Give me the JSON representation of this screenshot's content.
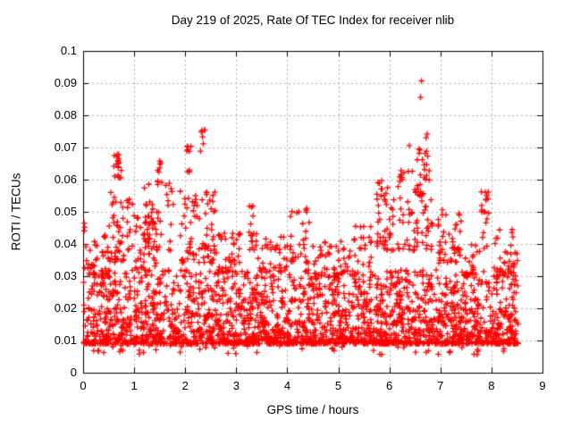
{
  "window": {
    "background": "#ffffff"
  },
  "chart_data": {
    "type": "scatter",
    "title": "Day 219 of 2025, Rate Of TEC Index for receiver nlib",
    "xlabel": "GPS time / hours",
    "ylabel": "ROTI / TECUs",
    "xlim": [
      0,
      9
    ],
    "ylim": [
      0,
      0.1
    ],
    "xticks": [
      "0",
      "1",
      "2",
      "3",
      "4",
      "5",
      "6",
      "7",
      "8",
      "9"
    ],
    "yticks": [
      "0",
      "0.01",
      "0.02",
      "0.03",
      "0.04",
      "0.05",
      "0.06",
      "0.07",
      "0.08",
      "0.09",
      "0.1"
    ],
    "grid": true,
    "grid_style": "dashed",
    "grid_color": "#a6a6a6",
    "frame_color": "#000000",
    "legend": false,
    "marker": "plus",
    "marker_color": "#ff0000",
    "marker_size": 6.6,
    "marker_line_width": 1.3,
    "x_data_range": [
      0,
      8.52
    ],
    "seed": 20250807,
    "description": "Dense band of ROTI values between ~0.009 and ~0.033 TECUs across 0-8.5 h, with spike clusters reaching 0.065-0.075 near hours 0.7 and 2.0-2.4, and a maximum of ~0.091 at hour 6.6.",
    "clusters": [
      {
        "x": [
          0.0,
          8.52
        ],
        "y": [
          0.009,
          0.032
        ],
        "n": 2300,
        "skew": 2.2
      },
      {
        "x": [
          0.0,
          8.52
        ],
        "y": [
          0.0055,
          0.01
        ],
        "n": 70,
        "skew": 1.0
      },
      {
        "x": [
          0.03,
          0.5
        ],
        "y": [
          0.03,
          0.043
        ],
        "n": 40,
        "skew": 1.5
      },
      {
        "x": [
          0.5,
          0.82
        ],
        "y": [
          0.034,
          0.056
        ],
        "n": 40,
        "skew": 1.5
      },
      {
        "x": [
          0.6,
          0.75
        ],
        "y": [
          0.06,
          0.068
        ],
        "n": 12,
        "skew": 1.0
      },
      {
        "x": [
          0.85,
          1.0
        ],
        "y": [
          0.038,
          0.058
        ],
        "n": 12,
        "skew": 1.3
      },
      {
        "x": [
          1.0,
          1.45
        ],
        "y": [
          0.032,
          0.049
        ],
        "n": 40,
        "skew": 1.5
      },
      {
        "x": [
          1.2,
          1.8
        ],
        "y": [
          0.038,
          0.06
        ],
        "n": 45,
        "skew": 1.4
      },
      {
        "x": [
          1.45,
          1.55
        ],
        "y": [
          0.055,
          0.066
        ],
        "n": 8,
        "skew": 1.0
      },
      {
        "x": [
          1.9,
          2.6
        ],
        "y": [
          0.034,
          0.058
        ],
        "n": 80,
        "skew": 1.5
      },
      {
        "x": [
          2.02,
          2.12
        ],
        "y": [
          0.062,
          0.0705
        ],
        "n": 7,
        "skew": 1.0
      },
      {
        "x": [
          2.28,
          2.4
        ],
        "y": [
          0.066,
          0.0755
        ],
        "n": 5,
        "skew": 1.0
      },
      {
        "x": [
          2.6,
          3.1
        ],
        "y": [
          0.031,
          0.044
        ],
        "n": 40,
        "skew": 1.5
      },
      {
        "x": [
          3.25,
          3.42
        ],
        "y": [
          0.038,
          0.052
        ],
        "n": 16,
        "skew": 1.2
      },
      {
        "x": [
          3.42,
          4.0
        ],
        "y": [
          0.031,
          0.043
        ],
        "n": 35,
        "skew": 1.5
      },
      {
        "x": [
          4.05,
          4.45
        ],
        "y": [
          0.034,
          0.051
        ],
        "n": 30,
        "skew": 1.4
      },
      {
        "x": [
          4.5,
          5.3
        ],
        "y": [
          0.03,
          0.041
        ],
        "n": 45,
        "skew": 1.5
      },
      {
        "x": [
          5.3,
          5.65
        ],
        "y": [
          0.033,
          0.046
        ],
        "n": 22,
        "skew": 1.4
      },
      {
        "x": [
          5.75,
          6.1
        ],
        "y": [
          0.038,
          0.06
        ],
        "n": 45,
        "skew": 1.3
      },
      {
        "x": [
          6.15,
          6.85
        ],
        "y": [
          0.038,
          0.065
        ],
        "n": 75,
        "skew": 1.5
      },
      {
        "x": [
          6.45,
          6.8
        ],
        "y": [
          0.055,
          0.07
        ],
        "n": 12,
        "skew": 1.0
      },
      {
        "x": [
          6.95,
          7.45
        ],
        "y": [
          0.034,
          0.05
        ],
        "n": 45,
        "skew": 1.4
      },
      {
        "x": [
          7.45,
          7.78
        ],
        "y": [
          0.03,
          0.04
        ],
        "n": 22,
        "skew": 1.5
      },
      {
        "x": [
          7.8,
          7.95
        ],
        "y": [
          0.038,
          0.0565
        ],
        "n": 16,
        "skew": 1.2
      },
      {
        "x": [
          8.05,
          8.52
        ],
        "y": [
          0.03,
          0.045
        ],
        "n": 30,
        "skew": 1.5
      }
    ],
    "outliers": [
      [
        0.02,
        0.0465
      ],
      [
        0.03,
        0.0452
      ],
      [
        0.025,
        0.0441
      ],
      [
        0.67,
        0.0678
      ],
      [
        0.66,
        0.0672
      ],
      [
        0.7,
        0.0665
      ],
      [
        0.68,
        0.0659
      ],
      [
        0.65,
        0.0648
      ],
      [
        0.69,
        0.064
      ],
      [
        1.5,
        0.0658
      ],
      [
        2.05,
        0.0702
      ],
      [
        2.08,
        0.0688
      ],
      [
        2.33,
        0.0753
      ],
      [
        2.34,
        0.0733
      ],
      [
        3.3,
        0.0514
      ],
      [
        4.38,
        0.0511
      ],
      [
        5.85,
        0.0597
      ],
      [
        6.63,
        0.0907
      ],
      [
        6.61,
        0.0856
      ],
      [
        6.74,
        0.0742
      ],
      [
        6.72,
        0.073
      ],
      [
        6.39,
        0.0706
      ],
      [
        6.6,
        0.0692
      ],
      [
        6.23,
        0.0628
      ],
      [
        6.25,
        0.06
      ],
      [
        6.71,
        0.0601
      ],
      [
        7.04,
        0.0506
      ],
      [
        7.37,
        0.049
      ],
      [
        7.88,
        0.0561
      ],
      [
        7.89,
        0.0539
      ],
      [
        7.87,
        0.05
      ],
      [
        8.4,
        0.0436
      ],
      [
        8.42,
        0.0422
      ]
    ]
  }
}
